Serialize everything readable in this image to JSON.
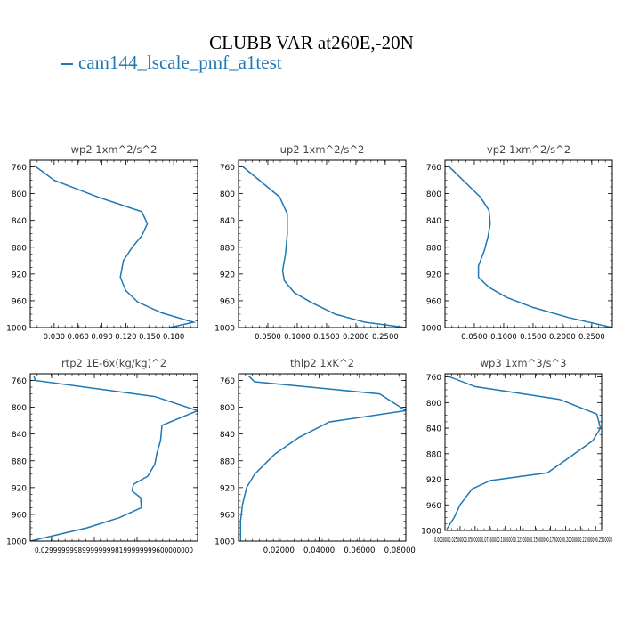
{
  "title": "CLUBB VAR at260E,-20N",
  "legend": {
    "label": "cam144_lscale_pmf_a1test",
    "color": "#1f77b4"
  },
  "chart_data": [
    {
      "type": "line",
      "title": "wp2  1xm^2/s^2",
      "xlim": [
        0.0,
        0.21
      ],
      "xticks": [
        0.03,
        0.06,
        0.09,
        0.12,
        0.15,
        0.18
      ],
      "xticklabels": [
        "0.030",
        "0.060",
        "0.090",
        "0.120",
        "0.150",
        "0.180"
      ],
      "ylim": [
        1000,
        750
      ],
      "yticks": [
        760,
        800,
        840,
        880,
        920,
        960,
        1000
      ],
      "yticklabels": [
        "760",
        "800",
        "840",
        "880",
        "920",
        "960",
        "1000"
      ],
      "series": [
        {
          "x": [
            0.005,
            0.03,
            0.085,
            0.14,
            0.147,
            0.14,
            0.128,
            0.117,
            0.113,
            0.12,
            0.135,
            0.165,
            0.205,
            0.175
          ],
          "y": [
            758,
            780,
            805,
            827,
            845,
            863,
            880,
            900,
            925,
            945,
            962,
            978,
            992,
            1000
          ]
        }
      ]
    },
    {
      "type": "line",
      "title": "up2  1xm^2/s^2",
      "xlim": [
        0.0,
        0.285
      ],
      "xticks": [
        0.05,
        0.1,
        0.15,
        0.2,
        0.25
      ],
      "xticklabels": [
        "0.0500",
        "0.1000",
        "0.1500",
        "0.2000",
        "0.2500"
      ],
      "ylim": [
        1000,
        750
      ],
      "yticks": [
        760,
        800,
        840,
        880,
        920,
        960,
        1000
      ],
      "yticklabels": [
        "760",
        "800",
        "840",
        "880",
        "920",
        "960",
        "1000"
      ],
      "series": [
        {
          "x": [
            0.005,
            0.07,
            0.083,
            0.083,
            0.08,
            0.075,
            0.078,
            0.095,
            0.125,
            0.165,
            0.215,
            0.285
          ],
          "y": [
            758,
            805,
            830,
            860,
            890,
            915,
            930,
            948,
            963,
            980,
            992,
            1000
          ]
        }
      ]
    },
    {
      "type": "line",
      "title": "vp2  1xm^2/s^2",
      "xlim": [
        0.0,
        0.285
      ],
      "xticks": [
        0.05,
        0.1,
        0.15,
        0.2,
        0.25
      ],
      "xticklabels": [
        "0.0500",
        "0.1000",
        "0.1500",
        "0.2000",
        "0.2500"
      ],
      "ylim": [
        1000,
        750
      ],
      "yticks": [
        760,
        800,
        840,
        880,
        920,
        960,
        1000
      ],
      "yticklabels": [
        "760",
        "800",
        "840",
        "880",
        "920",
        "960",
        "1000"
      ],
      "series": [
        {
          "x": [
            0.005,
            0.06,
            0.075,
            0.077,
            0.073,
            0.067,
            0.057,
            0.057,
            0.075,
            0.105,
            0.15,
            0.21,
            0.285
          ],
          "y": [
            758,
            805,
            825,
            845,
            865,
            885,
            908,
            925,
            940,
            955,
            970,
            985,
            1000
          ]
        }
      ]
    },
    {
      "type": "line",
      "title": "rtp2  1E-6x(kg/kg)^2",
      "xlim": [
        0.0,
        0.235
      ],
      "xticks": [
        0.03,
        0.09,
        0.15
      ],
      "xticklabels": [
        "0.0299999",
        "0.0899999",
        "0.1500000"
      ],
      "xticklabel_text": "0.0299999998999999998199999999600000000",
      "ylim": [
        1000,
        750
      ],
      "yticks": [
        760,
        800,
        840,
        880,
        920,
        960,
        1000
      ],
      "yticklabels": [
        "760",
        "800",
        "840",
        "880",
        "920",
        "960",
        "1000"
      ],
      "series": [
        {
          "x": [
            0.005,
            0.007,
            0.175,
            0.235,
            0.185,
            0.183,
            0.178,
            0.175,
            0.165,
            0.145,
            0.143,
            0.155,
            0.156,
            0.125,
            0.08,
            0.04,
            0.02,
            0.0
          ],
          "y": [
            753,
            760,
            784,
            805,
            827,
            850,
            868,
            885,
            903,
            915,
            925,
            935,
            950,
            965,
            980,
            990,
            995,
            1000
          ]
        }
      ]
    },
    {
      "type": "line",
      "title": "thlp2  1xK^2",
      "xlim": [
        0.0,
        0.083
      ],
      "xticks": [
        0.02,
        0.04,
        0.06,
        0.08
      ],
      "xticklabels": [
        "0.02000",
        "0.04000",
        "0.06000",
        "0.08000"
      ],
      "ylim": [
        1000,
        750
      ],
      "yticks": [
        760,
        800,
        840,
        880,
        920,
        960,
        1000
      ],
      "yticklabels": [
        "760",
        "800",
        "840",
        "880",
        "920",
        "960",
        "1000"
      ],
      "series": [
        {
          "x": [
            0.005,
            0.008,
            0.07,
            0.083,
            0.045,
            0.03,
            0.018,
            0.008,
            0.004,
            0.002,
            0.001,
            0.001
          ],
          "y": [
            753,
            762,
            780,
            805,
            822,
            845,
            870,
            900,
            920,
            945,
            970,
            1000
          ]
        }
      ]
    },
    {
      "type": "line",
      "title": "wp3  1xm^3/s^3",
      "xlim": [
        0.0,
        0.26
      ],
      "xticks": [
        0.0,
        0.025,
        0.05,
        0.075,
        0.1,
        0.125,
        0.15,
        0.175,
        0.2,
        0.225,
        0.25
      ],
      "xticklabels": [
        "0.0000000",
        "0.0250000",
        "0.0500000",
        "0.0750000",
        "0.1000000",
        "0.1250000",
        "0.1500000",
        "0.1750000",
        "0.2000000",
        "0.2250000",
        "0.2500000"
      ],
      "xticklabel_text": "0.0000000.02500000.05000000.07500000.10000000.12500000.15000000.17500000.20000000.22500000.2500000",
      "ylim": [
        1000,
        755
      ],
      "yticks": [
        760,
        800,
        840,
        880,
        920,
        960,
        1000
      ],
      "yticklabels": [
        "760",
        "800",
        "840",
        "880",
        "920",
        "960",
        "1000"
      ],
      "series": [
        {
          "x": [
            0.003,
            0.05,
            0.19,
            0.252,
            0.258,
            0.245,
            0.2,
            0.17,
            0.075,
            0.045,
            0.025,
            0.015,
            0.003
          ],
          "y": [
            758,
            775,
            795,
            818,
            840,
            860,
            890,
            910,
            922,
            935,
            960,
            980,
            998
          ]
        }
      ]
    }
  ]
}
